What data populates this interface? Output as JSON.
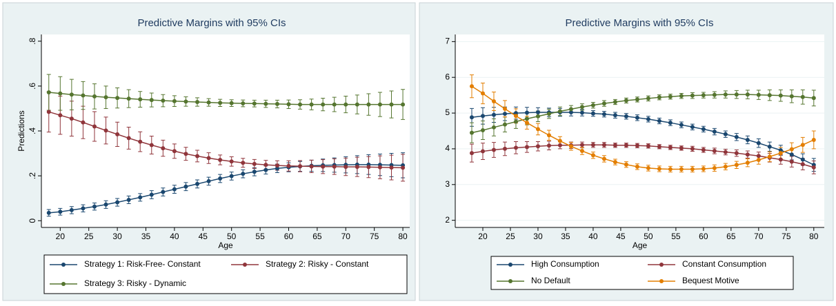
{
  "chart_data": [
    {
      "type": "line",
      "title": "Predictive Margins with 95% CIs",
      "x_label": "Age",
      "y_label": "Predictions",
      "x": [
        18,
        20,
        22,
        24,
        26,
        28,
        30,
        32,
        34,
        36,
        38,
        40,
        42,
        44,
        46,
        48,
        50,
        52,
        54,
        56,
        58,
        60,
        62,
        64,
        66,
        68,
        70,
        72,
        74,
        76,
        78,
        80
      ],
      "xlim": [
        16.7,
        81.2
      ],
      "xticks": [
        20,
        25,
        30,
        35,
        40,
        45,
        50,
        55,
        60,
        65,
        70,
        75,
        80
      ],
      "ylim": [
        -0.03,
        0.83
      ],
      "yticks": [
        0,
        {
          "value": 0.2,
          "label": ".2"
        },
        {
          "value": 0.4,
          "label": ".4"
        },
        {
          "value": 0.6,
          "label": ".6"
        },
        {
          "value": 0.8,
          "label": ".8"
        }
      ],
      "grid": false,
      "series": [
        {
          "name": "Strategy 1: Risk-Free- Constant",
          "color": "#1a476f",
          "values": [
            0.035,
            0.04,
            0.047,
            0.055,
            0.063,
            0.072,
            0.082,
            0.093,
            0.104,
            0.116,
            0.128,
            0.14,
            0.152,
            0.164,
            0.176,
            0.188,
            0.199,
            0.209,
            0.218,
            0.226,
            0.233,
            0.238,
            0.242,
            0.245,
            0.247,
            0.248,
            0.249,
            0.25,
            0.25,
            0.249,
            0.248,
            0.247
          ],
          "errors": [
            0.015,
            0.015,
            0.016,
            0.016,
            0.016,
            0.017,
            0.017,
            0.017,
            0.017,
            0.018,
            0.018,
            0.018,
            0.018,
            0.018,
            0.018,
            0.018,
            0.018,
            0.018,
            0.018,
            0.018,
            0.019,
            0.02,
            0.022,
            0.025,
            0.028,
            0.032,
            0.036,
            0.04,
            0.044,
            0.048,
            0.052,
            0.056
          ]
        },
        {
          "name": "Strategy 2: Risky - Constant",
          "color": "#90353b",
          "values": [
            0.485,
            0.47,
            0.455,
            0.438,
            0.42,
            0.402,
            0.385,
            0.368,
            0.352,
            0.337,
            0.323,
            0.31,
            0.298,
            0.288,
            0.279,
            0.271,
            0.264,
            0.258,
            0.253,
            0.249,
            0.246,
            0.244,
            0.243,
            0.242,
            0.241,
            0.241,
            0.24,
            0.24,
            0.239,
            0.238,
            0.237,
            0.236
          ],
          "errors": [
            0.09,
            0.085,
            0.078,
            0.072,
            0.066,
            0.06,
            0.054,
            0.049,
            0.044,
            0.04,
            0.036,
            0.032,
            0.029,
            0.026,
            0.024,
            0.022,
            0.021,
            0.02,
            0.02,
            0.02,
            0.021,
            0.023,
            0.025,
            0.028,
            0.031,
            0.035,
            0.039,
            0.043,
            0.047,
            0.051,
            0.055,
            0.06
          ]
        },
        {
          "name": "Strategy 3: Risky - Dynamic",
          "color": "#55752f",
          "values": [
            0.572,
            0.567,
            0.562,
            0.558,
            0.554,
            0.55,
            0.547,
            0.544,
            0.541,
            0.538,
            0.535,
            0.533,
            0.531,
            0.529,
            0.527,
            0.525,
            0.524,
            0.523,
            0.522,
            0.521,
            0.52,
            0.519,
            0.518,
            0.518,
            0.518,
            0.518,
            0.518,
            0.518,
            0.518,
            0.518,
            0.518,
            0.518
          ],
          "errors": [
            0.08,
            0.075,
            0.068,
            0.062,
            0.056,
            0.05,
            0.045,
            0.04,
            0.035,
            0.031,
            0.027,
            0.024,
            0.021,
            0.019,
            0.017,
            0.016,
            0.015,
            0.015,
            0.015,
            0.016,
            0.017,
            0.019,
            0.021,
            0.024,
            0.028,
            0.032,
            0.037,
            0.042,
            0.048,
            0.054,
            0.06,
            0.067
          ]
        }
      ]
    },
    {
      "type": "line",
      "title": "Predictive Margins with 95% CIs",
      "x_label": "Age",
      "x": [
        18,
        20,
        22,
        24,
        26,
        28,
        30,
        32,
        34,
        36,
        38,
        40,
        42,
        44,
        46,
        48,
        50,
        52,
        54,
        56,
        58,
        60,
        62,
        64,
        66,
        68,
        70,
        72,
        74,
        76,
        78,
        80
      ],
      "xlim": [
        15,
        81.9
      ],
      "xticks": [
        20,
        25,
        30,
        35,
        40,
        45,
        50,
        55,
        60,
        65,
        70,
        75,
        80
      ],
      "ylim": [
        1.8,
        7.2
      ],
      "yticks": [
        2,
        3,
        4,
        5,
        6,
        7
      ],
      "grid": true,
      "series": [
        {
          "name": "High Consumption",
          "color": "#1a476f",
          "values": [
            4.88,
            4.92,
            4.95,
            4.98,
            5.0,
            5.01,
            5.02,
            5.02,
            5.02,
            5.02,
            5.01,
            4.99,
            4.97,
            4.94,
            4.91,
            4.87,
            4.83,
            4.78,
            4.73,
            4.67,
            4.61,
            4.55,
            4.48,
            4.41,
            4.33,
            4.25,
            4.16,
            4.06,
            3.96,
            3.84,
            3.7,
            3.55
          ],
          "errors": [
            0.25,
            0.23,
            0.21,
            0.19,
            0.17,
            0.15,
            0.13,
            0.12,
            0.11,
            0.1,
            0.09,
            0.08,
            0.08,
            0.08,
            0.08,
            0.08,
            0.08,
            0.08,
            0.08,
            0.08,
            0.08,
            0.08,
            0.09,
            0.09,
            0.1,
            0.11,
            0.12,
            0.13,
            0.14,
            0.15,
            0.16,
            0.18
          ]
        },
        {
          "name": "Constant Consumption",
          "color": "#90353b",
          "values": [
            3.88,
            3.93,
            3.97,
            4.0,
            4.03,
            4.05,
            4.07,
            4.09,
            4.1,
            4.1,
            4.11,
            4.11,
            4.11,
            4.1,
            4.1,
            4.09,
            4.08,
            4.06,
            4.04,
            4.02,
            4.0,
            3.97,
            3.94,
            3.91,
            3.88,
            3.84,
            3.8,
            3.75,
            3.7,
            3.64,
            3.57,
            3.48
          ],
          "errors": [
            0.25,
            0.23,
            0.21,
            0.19,
            0.17,
            0.15,
            0.13,
            0.12,
            0.1,
            0.09,
            0.08,
            0.07,
            0.07,
            0.06,
            0.06,
            0.06,
            0.06,
            0.06,
            0.06,
            0.06,
            0.07,
            0.07,
            0.08,
            0.08,
            0.09,
            0.1,
            0.11,
            0.12,
            0.13,
            0.15,
            0.16,
            0.18
          ]
        },
        {
          "name": "No Default",
          "color": "#55752f",
          "values": [
            4.45,
            4.52,
            4.6,
            4.68,
            4.76,
            4.84,
            4.91,
            4.98,
            5.05,
            5.11,
            5.17,
            5.22,
            5.27,
            5.31,
            5.35,
            5.38,
            5.41,
            5.44,
            5.46,
            5.48,
            5.49,
            5.5,
            5.51,
            5.52,
            5.52,
            5.52,
            5.51,
            5.5,
            5.49,
            5.47,
            5.45,
            5.42
          ],
          "errors": [
            0.28,
            0.26,
            0.24,
            0.21,
            0.19,
            0.17,
            0.15,
            0.13,
            0.12,
            0.1,
            0.09,
            0.08,
            0.08,
            0.07,
            0.07,
            0.07,
            0.07,
            0.07,
            0.07,
            0.07,
            0.08,
            0.08,
            0.09,
            0.1,
            0.11,
            0.12,
            0.13,
            0.15,
            0.16,
            0.18,
            0.2,
            0.22
          ]
        },
        {
          "name": "Bequest Motive",
          "color": "#e37e00",
          "values": [
            5.75,
            5.55,
            5.33,
            5.12,
            4.92,
            4.73,
            4.55,
            4.38,
            4.22,
            4.07,
            3.94,
            3.82,
            3.72,
            3.63,
            3.56,
            3.5,
            3.46,
            3.44,
            3.43,
            3.43,
            3.43,
            3.44,
            3.46,
            3.5,
            3.55,
            3.61,
            3.69,
            3.78,
            3.88,
            3.99,
            4.11,
            4.25
          ],
          "errors": [
            0.32,
            0.29,
            0.26,
            0.23,
            0.2,
            0.18,
            0.16,
            0.14,
            0.12,
            0.11,
            0.1,
            0.09,
            0.09,
            0.08,
            0.08,
            0.08,
            0.08,
            0.08,
            0.08,
            0.08,
            0.08,
            0.08,
            0.09,
            0.09,
            0.1,
            0.11,
            0.12,
            0.14,
            0.16,
            0.18,
            0.21,
            0.25
          ]
        }
      ]
    }
  ]
}
